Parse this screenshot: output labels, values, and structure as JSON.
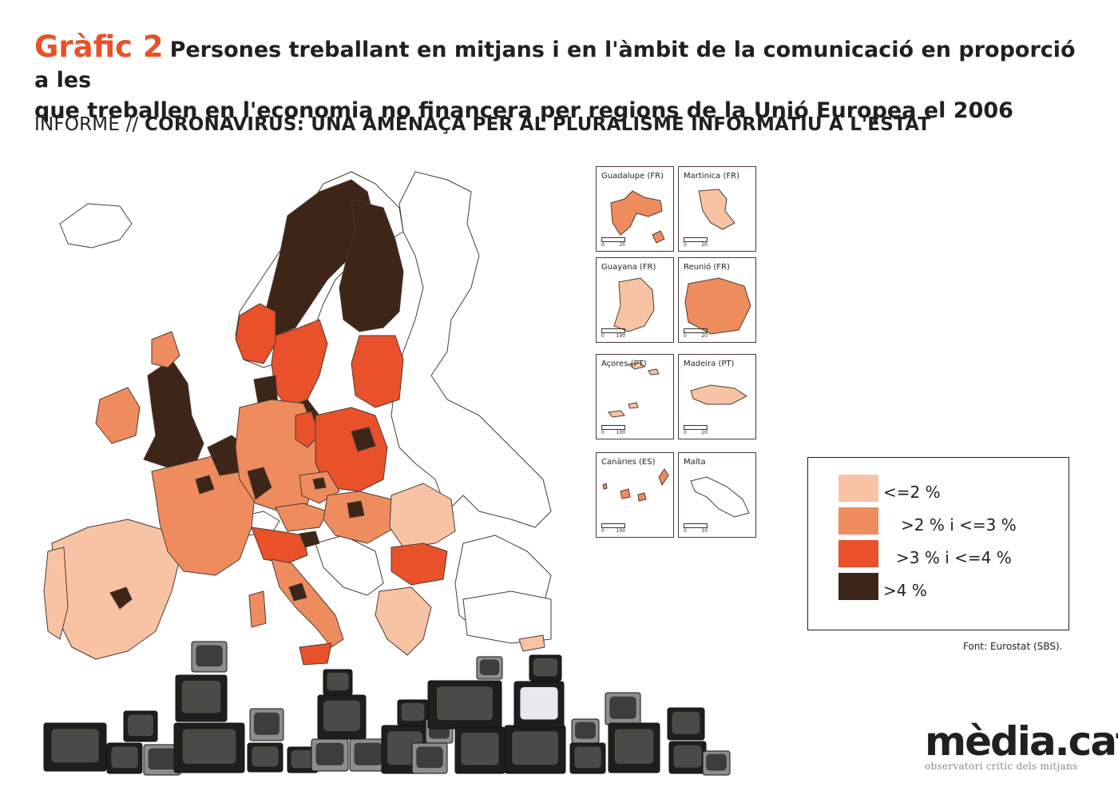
{
  "header": {
    "chart_number": "Gràfic 2",
    "title_line1": "Persones treballant en mitjans i en l'àmbit de la comunicació en proporció a les",
    "title_line2": "que treballen en l'economia no financera per regions de la Unió Europea el 2006"
  },
  "subtitle": {
    "prefix": "INFORME // ",
    "report": "CORONAVIRUS: UNA AMENAÇA PER AL PLURALISME INFORMATIU A L'ESTAT"
  },
  "colors": {
    "cat1": "#f7c3a4",
    "cat2": "#ef8c5e",
    "cat3": "#e8512a",
    "cat4": "#3d2618",
    "border": "#4a3a34",
    "tv_dark": "#2a2a2a",
    "tv_grey": "#8d8d8d"
  },
  "insets": [
    {
      "label": "Guadalupe (FR)",
      "scale_start": "0",
      "scale_end": "25",
      "category": 2
    },
    {
      "label": "Martinica (FR)",
      "scale_start": "0",
      "scale_end": "20",
      "category": 1
    },
    {
      "label": "Guayana (FR)",
      "scale_start": "0",
      "scale_end": "100",
      "category": 1
    },
    {
      "label": "Reunió (FR)",
      "scale_start": "0",
      "scale_end": "20",
      "category": 2
    },
    {
      "label": "Açores (PT)",
      "scale_start": "0",
      "scale_end": "100",
      "category": 1
    },
    {
      "label": "Madeira (PT)",
      "scale_start": "0",
      "scale_end": "20",
      "category": 1
    },
    {
      "label": "Canàries (ES)",
      "scale_start": "0",
      "scale_end": "100",
      "category": 2
    },
    {
      "label": "Malta",
      "scale_start": "0",
      "scale_end": "10",
      "category": 0
    }
  ],
  "legend": {
    "items": [
      {
        "label": "<=2 %",
        "category": 1
      },
      {
        "label": ">2 % i <=3 %",
        "category": 2
      },
      {
        "label": ">3 % i <=4 %",
        "category": 3
      },
      {
        "label": ">4 %",
        "category": 4
      }
    ]
  },
  "source": "Font: Eurostat (SBS).",
  "logo": {
    "name": "mèdia.cat",
    "tagline": "observatori crític dels mitjans"
  }
}
